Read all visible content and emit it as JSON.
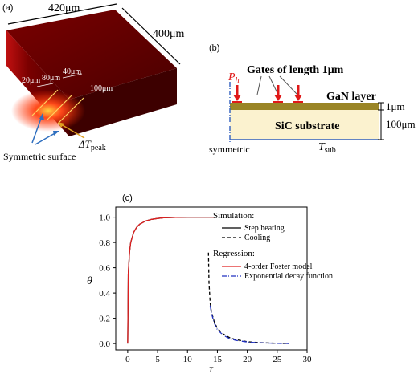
{
  "panel_a": {
    "label": "(a)",
    "dim_width": "420μm",
    "dim_depth": "400μm",
    "dim_20": "20μm",
    "dim_80": "80μm",
    "dim_40": "40μm",
    "dim_100": "100μm",
    "delta_t_symbol": "ΔT",
    "delta_t_sub": "peak",
    "symmetric_label": "Symmetric surface",
    "colors": {
      "block_dark": "#5a0000",
      "block_mid": "#8b0000",
      "hot": "#ff3b1a",
      "arrow": "#2f6fbf",
      "dt_arrow": "#e0a020"
    }
  },
  "panel_b": {
    "label": "(b)",
    "ph_symbol": "P",
    "ph_sub": "h",
    "gates_label": "Gates of length 1μm",
    "gan_label": "GaN layer",
    "sic_label": "SiC substrate",
    "dim_1": "1μm",
    "dim_100": "100μm",
    "symmetric_label": "symmetric",
    "tsub_symbol": "T",
    "tsub_sub": "sub",
    "colors": {
      "gan": "#9a8526",
      "sic": "#fbf2cf",
      "arrow": "#e01818",
      "border": "#2f5fbf",
      "ph": "#e01818"
    }
  },
  "panel_c": {
    "label": "(c)",
    "legend": {
      "sim_title": "Simulation:",
      "sim_items": [
        "Step heating",
        "Cooling"
      ],
      "reg_title": "Regression:",
      "reg_items": [
        "4-order Foster model",
        "Exponential decay function"
      ]
    },
    "colors": {
      "step": "#000000",
      "cooling": "#000000",
      "foster": "#e02020",
      "exp": "#2030c0"
    }
  },
  "chart_data": {
    "type": "line",
    "title": "",
    "xlabel": "τ",
    "ylabel": "θ",
    "xlim": [
      -2,
      30
    ],
    "ylim": [
      -0.05,
      1.08
    ],
    "xticks": [
      0,
      5,
      10,
      15,
      20,
      25,
      30
    ],
    "yticks": [
      0.0,
      0.2,
      0.4,
      0.6,
      0.8,
      1.0
    ],
    "grid": false,
    "legend_position": "right",
    "series": [
      {
        "name": "Step heating",
        "style": "solid",
        "x": [
          0,
          0.1,
          0.3,
          0.5,
          1,
          1.5,
          2,
          3,
          4,
          5,
          6,
          8,
          10,
          12,
          14.5
        ],
        "y": [
          0,
          0.55,
          0.72,
          0.8,
          0.88,
          0.92,
          0.945,
          0.97,
          0.983,
          0.99,
          0.995,
          0.998,
          1.0,
          1.0,
          1.0
        ]
      },
      {
        "name": "Cooling",
        "style": "dashed",
        "x": [
          13.5,
          13.6,
          13.8,
          14,
          14.5,
          15,
          16,
          17,
          18,
          20,
          22,
          25,
          27
        ],
        "y": [
          0.72,
          0.48,
          0.32,
          0.25,
          0.17,
          0.12,
          0.075,
          0.048,
          0.032,
          0.015,
          0.007,
          0.002,
          0.0
        ]
      },
      {
        "name": "4-order Foster model",
        "style": "solid",
        "x": [
          0,
          0.1,
          0.3,
          0.5,
          1,
          1.5,
          2,
          3,
          4,
          5,
          6,
          8,
          10,
          12,
          14.5
        ],
        "y": [
          0,
          0.55,
          0.72,
          0.8,
          0.88,
          0.92,
          0.945,
          0.97,
          0.983,
          0.99,
          0.995,
          0.998,
          1.0,
          1.0,
          1.0
        ]
      },
      {
        "name": "Exponential decay function",
        "style": "dashdot",
        "x": [
          13.8,
          14,
          14.5,
          15,
          16,
          17,
          18,
          20,
          22,
          25,
          27
        ],
        "y": [
          0.3,
          0.24,
          0.16,
          0.11,
          0.065,
          0.04,
          0.026,
          0.012,
          0.006,
          0.002,
          0.0
        ]
      }
    ]
  }
}
